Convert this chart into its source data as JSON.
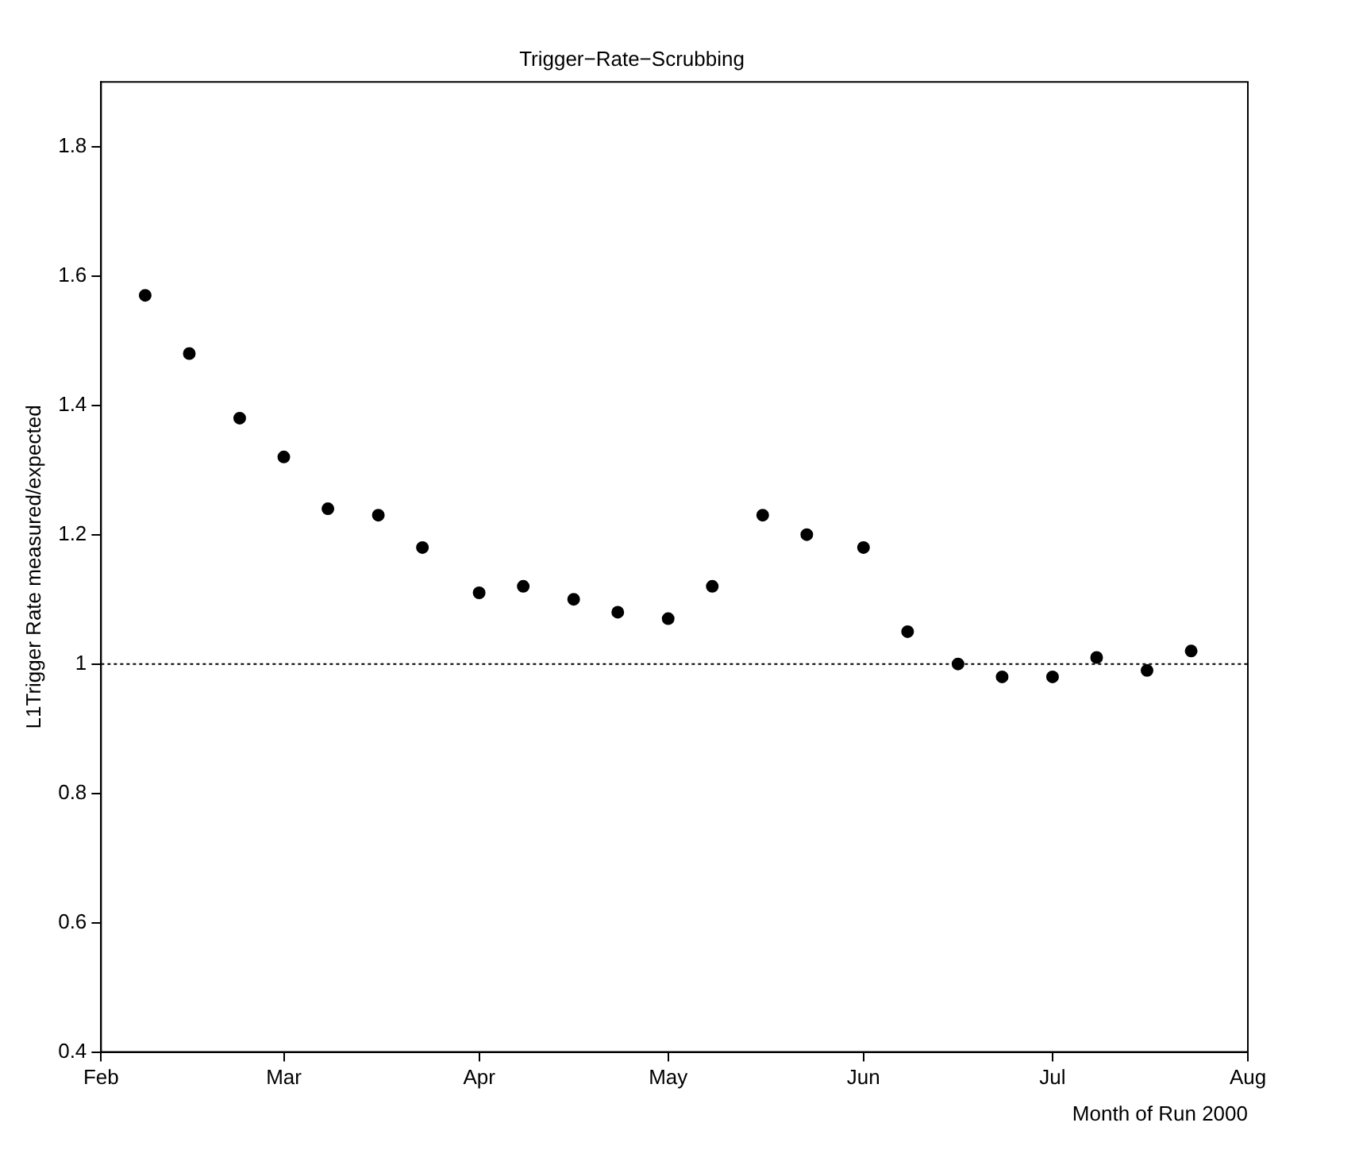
{
  "chart_data": {
    "type": "scatter",
    "title": "Trigger−Rate−Scrubbing",
    "xlabel": "Month of Run 2000",
    "ylabel": "L1Trigger Rate measured/expected",
    "x": [
      "2000-02-08",
      "2000-02-15",
      "2000-02-23",
      "2000-03-01",
      "2000-03-08",
      "2000-03-16",
      "2000-03-23",
      "2000-04-01",
      "2000-04-08",
      "2000-04-16",
      "2000-04-23",
      "2000-05-01",
      "2000-05-08",
      "2000-05-16",
      "2000-05-23",
      "2000-06-01",
      "2000-06-08",
      "2000-06-16",
      "2000-06-23",
      "2000-07-01",
      "2000-07-08",
      "2000-07-16",
      "2000-07-23"
    ],
    "values": [
      1.57,
      1.48,
      1.38,
      1.32,
      1.24,
      1.23,
      1.18,
      1.11,
      1.12,
      1.1,
      1.08,
      1.07,
      1.12,
      1.23,
      1.2,
      1.18,
      1.05,
      1.0,
      0.98,
      0.98,
      1.01,
      0.99,
      1.02
    ],
    "color": "#000000",
    "marker": "circle",
    "grid": false,
    "legend": false,
    "xlim": [
      "2000-02-01",
      "2000-08-01"
    ],
    "xticks": [
      {
        "value": "2000-02-01",
        "label": "Feb"
      },
      {
        "value": "2000-03-01",
        "label": "Mar"
      },
      {
        "value": "2000-04-01",
        "label": "Apr"
      },
      {
        "value": "2000-05-01",
        "label": "May"
      },
      {
        "value": "2000-06-01",
        "label": "Jun"
      },
      {
        "value": "2000-07-01",
        "label": "Jul"
      },
      {
        "value": "2000-08-01",
        "label": "Aug"
      }
    ],
    "ylim": [
      0.4,
      1.9
    ],
    "yticks": [
      0.4,
      0.6,
      0.8,
      1,
      1.2,
      1.4,
      1.6,
      1.8
    ],
    "ref_lines": [
      {
        "axis": "y",
        "value": 1,
        "line_style": "dotted",
        "color": "#000000"
      }
    ]
  }
}
